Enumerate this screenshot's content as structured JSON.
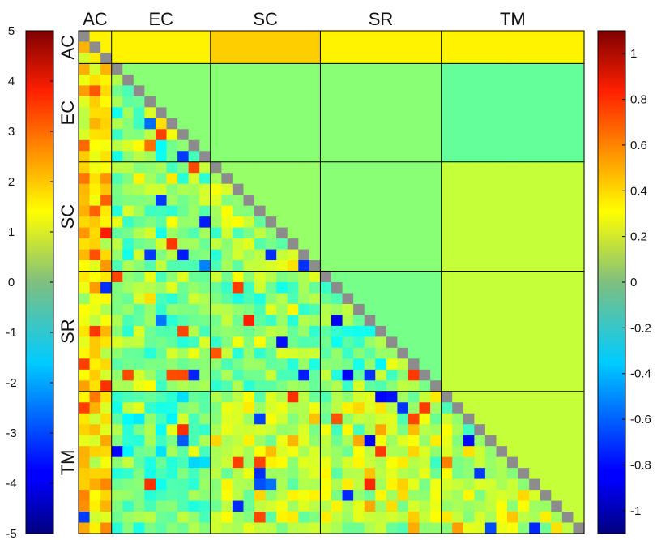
{
  "chart_data": {
    "type": "heatmap",
    "layout": "lower triangle: fine-grained element correlations; upper triangle: block-averaged values; diagonal masked in gray",
    "groups": [
      {
        "label": "AC",
        "size": 3
      },
      {
        "label": "EC",
        "size": 9
      },
      {
        "label": "SC",
        "size": 10
      },
      {
        "label": "SR",
        "size": 11
      },
      {
        "label": "TM",
        "size": 13
      }
    ],
    "block_means_upper": [
      [
        0.3,
        0.3,
        0.38,
        0.3,
        0.3
      ],
      [
        0.05,
        0.02,
        0.02,
        0.02,
        -0.06
      ],
      [
        0.02,
        0.05,
        0.05,
        0.02,
        0.15
      ],
      [
        0.02,
        0.02,
        0.05,
        -0.02,
        0.15
      ],
      [
        0.05,
        0.02,
        0.1,
        0.1,
        0.15
      ]
    ],
    "left_colorbar": {
      "range": [
        -5,
        5
      ],
      "ticks": [
        "5",
        "4",
        "3",
        "2",
        "1",
        "0",
        "-1",
        "-2",
        "-3",
        "-4",
        "-5"
      ]
    },
    "right_colorbar": {
      "range": [
        -1.1,
        1.1
      ],
      "ticks": [
        "1",
        "0.8",
        "0.6",
        "0.4",
        "0.2",
        "0",
        "-0.2",
        "-0.4",
        "-0.6",
        "-0.8",
        "-1"
      ]
    },
    "colormap": "jet",
    "diagonal_color": "#8c8c8c",
    "grid_line_color": "#000000"
  }
}
